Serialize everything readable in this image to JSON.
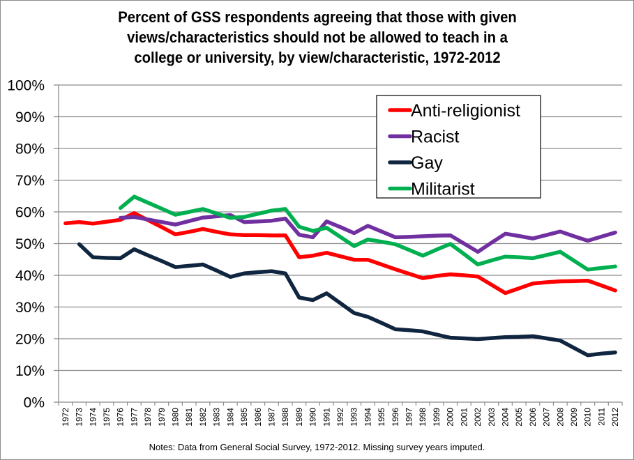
{
  "chart_data": {
    "type": "line",
    "title": "Percent of GSS respondents agreeing that those with given views/characteristics should not be allowed to teach in a college or university, by view/characteristic, 1972-2012",
    "title_lines": [
      "Percent of GSS respondents agreeing that those with given",
      "views/characteristics should not be allowed to teach in a",
      "college or university, by view/characteristic, 1972-2012"
    ],
    "xlabel": "",
    "ylabel": "",
    "ylim": [
      0,
      100
    ],
    "yticks": [
      "0%",
      "10%",
      "20%",
      "30%",
      "40%",
      "50%",
      "60%",
      "70%",
      "80%",
      "90%",
      "100%"
    ],
    "grid": true,
    "legend_position": "top-right",
    "note": "Notes: Data from General Social Survey, 1972-2012. Missing survey years imputed.",
    "categories": [
      "1972",
      "1973",
      "1974",
      "1975",
      "1976",
      "1977",
      "1978",
      "1979",
      "1980",
      "1981",
      "1982",
      "1983",
      "1984",
      "1985",
      "1986",
      "1987",
      "1988",
      "1989",
      "1990",
      "1991",
      "1992",
      "1993",
      "1994",
      "1995",
      "1996",
      "1997",
      "1998",
      "1999",
      "2000",
      "2001",
      "2002",
      "2003",
      "2004",
      "2005",
      "2006",
      "2007",
      "2008",
      "2009",
      "2010",
      "2011",
      "2012"
    ],
    "series": [
      {
        "name": "Anti-religionist",
        "color": "#ff0000",
        "values": [
          56.4,
          56.8,
          56.3,
          56.9,
          57.5,
          59.6,
          57.4,
          55.2,
          52.9,
          53.7,
          54.6,
          53.7,
          52.9,
          52.7,
          52.7,
          52.6,
          52.6,
          45.7,
          46.2,
          47.1,
          46.0,
          44.9,
          44.9,
          43.4,
          41.9,
          40.5,
          39.1,
          39.8,
          40.3,
          40.0,
          39.6,
          37.0,
          34.4,
          35.9,
          37.4,
          37.8,
          38.1,
          38.2,
          38.3,
          36.8,
          35.2
        ]
      },
      {
        "name": "Racist",
        "color": "#7030a0",
        "values": [
          null,
          null,
          null,
          null,
          58.1,
          58.4,
          57.6,
          56.8,
          56.0,
          57.1,
          58.2,
          58.6,
          59.0,
          56.8,
          57.0,
          57.2,
          57.9,
          52.8,
          52.0,
          57.0,
          55.2,
          53.3,
          55.6,
          53.8,
          52.0,
          52.1,
          52.3,
          52.5,
          52.6,
          50.0,
          47.4,
          50.3,
          53.1,
          52.4,
          51.6,
          52.7,
          53.8,
          52.3,
          50.9,
          52.2,
          53.5
        ]
      },
      {
        "name": "Gay",
        "color": "#10253f",
        "values": [
          null,
          49.8,
          45.7,
          45.5,
          45.4,
          48.2,
          46.3,
          44.5,
          42.6,
          43.0,
          43.4,
          41.5,
          39.5,
          40.6,
          41.0,
          41.3,
          40.6,
          33.0,
          32.2,
          34.3,
          31.2,
          28.1,
          26.9,
          25.0,
          23.0,
          22.7,
          22.3,
          21.3,
          20.3,
          20.1,
          19.9,
          20.2,
          20.5,
          20.6,
          20.8,
          20.1,
          19.4,
          17.1,
          14.8,
          15.3,
          15.7
        ]
      },
      {
        "name": "Militarist",
        "color": "#00b050",
        "values": [
          null,
          null,
          null,
          null,
          61.2,
          64.8,
          62.9,
          61.0,
          59.1,
          60.0,
          60.9,
          59.5,
          58.1,
          58.4,
          59.4,
          60.4,
          60.9,
          55.3,
          54.0,
          55.0,
          52.1,
          49.2,
          51.3,
          50.6,
          49.8,
          48.0,
          46.2,
          48.1,
          49.9,
          46.7,
          43.4,
          44.7,
          45.9,
          45.7,
          45.4,
          46.4,
          47.4,
          44.6,
          41.8,
          42.3,
          42.8
        ]
      }
    ]
  }
}
